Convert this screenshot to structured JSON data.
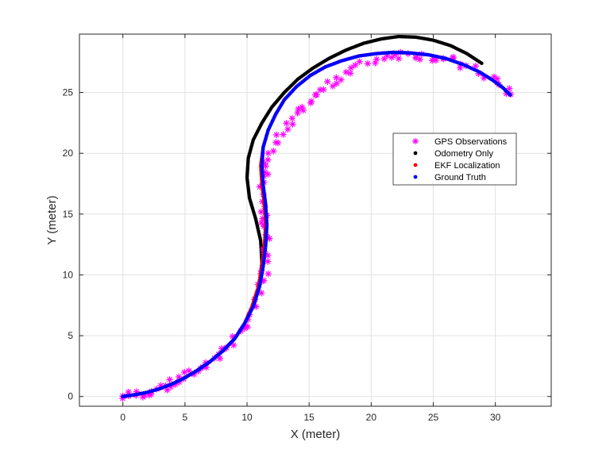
{
  "chart_data": {
    "type": "scatter",
    "xlabel": "X (meter)",
    "ylabel": "Y (meter)",
    "xlim": [
      -3.5,
      34.5
    ],
    "ylim": [
      -0.8,
      29.8
    ],
    "xticks": [
      0,
      5,
      10,
      15,
      20,
      25,
      30
    ],
    "yticks": [
      0,
      5,
      10,
      15,
      20,
      25
    ],
    "grid": true,
    "legend_position": "center-right",
    "series": [
      {
        "name": "GPS Observations",
        "color": "#ff00ff",
        "marker": "asterisk",
        "x": [
          0.0,
          0.5,
          1.0,
          1.5,
          2.0,
          2.5,
          3.0,
          3.5,
          4.0,
          4.5,
          5.0,
          5.5,
          6.0,
          6.5,
          7.0,
          7.5,
          8.0,
          8.5,
          9.0,
          9.5,
          10.0,
          10.4,
          10.8,
          11.1,
          11.3,
          11.5,
          11.6,
          11.6,
          11.5,
          11.4,
          11.3,
          11.4,
          11.6,
          11.9,
          12.3,
          12.8,
          13.4,
          14.1,
          14.8,
          15.6,
          16.5,
          17.4,
          18.3,
          19.2,
          20.1,
          21.0,
          22.0,
          23.0,
          24.0,
          25.0,
          26.0,
          27.0,
          27.9,
          28.8,
          29.6,
          30.3,
          30.8,
          31.2
        ],
        "y": [
          0.0,
          0.05,
          0.15,
          0.25,
          0.35,
          0.5,
          0.65,
          0.85,
          1.05,
          1.3,
          1.55,
          1.85,
          2.15,
          2.5,
          2.85,
          3.25,
          3.7,
          4.2,
          4.75,
          5.35,
          6.05,
          6.8,
          7.65,
          8.55,
          9.55,
          10.6,
          11.7,
          12.85,
          14.0,
          15.15,
          16.3,
          17.45,
          18.55,
          19.6,
          20.6,
          21.55,
          22.45,
          23.3,
          24.1,
          24.85,
          25.55,
          26.2,
          26.75,
          27.25,
          27.65,
          27.95,
          28.1,
          28.15,
          28.05,
          27.9,
          27.7,
          27.4,
          27.05,
          26.65,
          26.2,
          25.75,
          25.25,
          24.8
        ]
      },
      {
        "name": "Odometry Only",
        "color": "#000000",
        "marker": "dot",
        "x": [
          0.0,
          1.0,
          2.0,
          3.0,
          4.0,
          5.0,
          6.0,
          7.0,
          8.0,
          9.0,
          9.8,
          10.5,
          11.0,
          11.2,
          11.1,
          10.7,
          10.2,
          10.0,
          10.1,
          10.5,
          11.2,
          12.0,
          13.0,
          14.1,
          15.3,
          16.6,
          18.0,
          19.4,
          20.8,
          22.2,
          23.6,
          25.0,
          26.4,
          27.7,
          28.9
        ],
        "y": [
          0.0,
          0.15,
          0.35,
          0.65,
          1.05,
          1.55,
          2.15,
          2.85,
          3.7,
          4.75,
          6.0,
          7.5,
          9.2,
          11.0,
          12.8,
          14.6,
          16.3,
          18.0,
          19.6,
          21.1,
          22.5,
          23.8,
          25.0,
          26.1,
          27.0,
          27.8,
          28.5,
          29.05,
          29.4,
          29.6,
          29.55,
          29.3,
          28.85,
          28.2,
          27.4
        ]
      },
      {
        "name": "EKF Localization",
        "color": "#ff0000",
        "marker": "dot",
        "x": [
          0.0,
          1.0,
          2.0,
          3.0,
          4.0,
          5.0,
          6.0,
          7.0,
          8.0,
          9.0,
          9.8,
          10.4,
          10.9,
          11.2,
          11.4,
          11.5,
          11.4,
          11.2,
          11.1,
          11.3,
          11.7,
          12.3,
          13.0,
          14.0,
          15.1,
          16.3,
          17.6,
          19.0,
          20.4,
          21.8,
          23.2,
          24.6,
          26.0,
          27.4,
          28.7,
          29.8,
          30.6,
          31.2
        ],
        "y": [
          0.0,
          0.15,
          0.35,
          0.65,
          1.05,
          1.55,
          2.15,
          2.85,
          3.7,
          4.75,
          6.0,
          7.4,
          9.0,
          10.7,
          12.4,
          14.1,
          15.8,
          17.4,
          19.0,
          20.5,
          21.9,
          23.2,
          24.4,
          25.5,
          26.4,
          27.1,
          27.6,
          28.0,
          28.2,
          28.3,
          28.25,
          28.1,
          27.8,
          27.3,
          26.7,
          26.0,
          25.4,
          24.8
        ]
      },
      {
        "name": "Ground Truth",
        "color": "#0000ff",
        "marker": "dot",
        "x": [
          0.0,
          1.0,
          2.0,
          3.0,
          4.0,
          5.0,
          6.0,
          7.0,
          8.0,
          9.0,
          9.8,
          10.5,
          11.0,
          11.3,
          11.5,
          11.6,
          11.5,
          11.3,
          11.2,
          11.3,
          11.7,
          12.3,
          13.0,
          14.0,
          15.1,
          16.3,
          17.6,
          19.0,
          20.4,
          21.8,
          23.2,
          24.6,
          26.0,
          27.4,
          28.7,
          29.8,
          30.6,
          31.2
        ],
        "y": [
          0.0,
          0.15,
          0.35,
          0.65,
          1.05,
          1.55,
          2.15,
          2.85,
          3.7,
          4.75,
          6.0,
          7.4,
          9.0,
          10.7,
          12.4,
          14.1,
          15.8,
          17.4,
          19.0,
          20.5,
          21.9,
          23.2,
          24.4,
          25.5,
          26.4,
          27.1,
          27.6,
          28.0,
          28.2,
          28.3,
          28.25,
          28.1,
          27.8,
          27.3,
          26.7,
          26.0,
          25.4,
          24.8
        ]
      }
    ]
  }
}
